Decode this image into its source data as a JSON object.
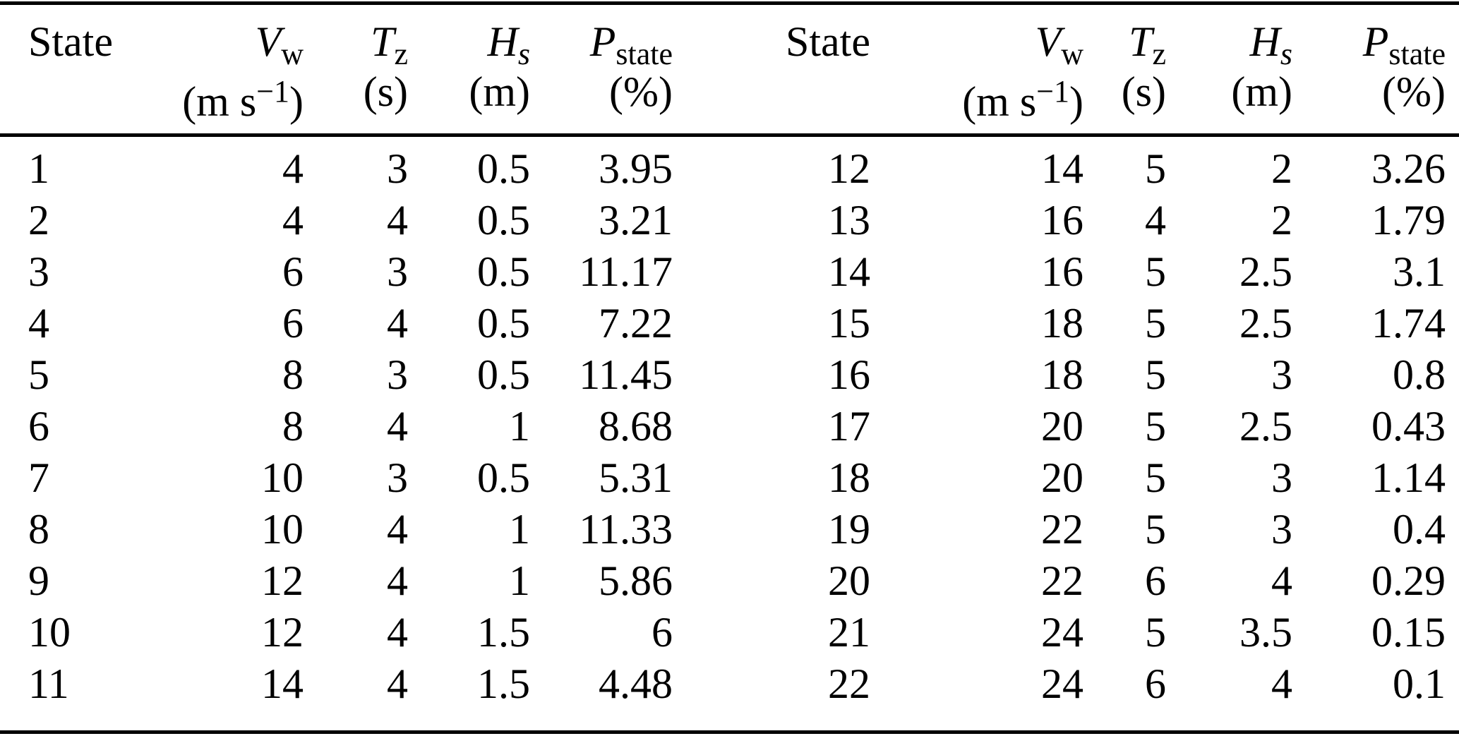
{
  "page": {
    "background": "#ffffff",
    "text_color": "#000000",
    "rule_color": "#000000"
  },
  "table": {
    "header": {
      "state": "State",
      "vw": {
        "symbol": "V",
        "subscript": "w",
        "unit_prefix": "(m s",
        "unit_superscript": "−1",
        "unit_suffix": ")"
      },
      "tz": {
        "symbol": "T",
        "subscript": "z",
        "unit": "(s)"
      },
      "hs": {
        "symbol": "H",
        "subscript": "s",
        "unit": "(m)"
      },
      "pstate": {
        "symbol": "P",
        "subscript": "state",
        "unit": "(%)"
      }
    },
    "column_keys": [
      "state",
      "vw",
      "tz",
      "hs",
      "pstate"
    ],
    "rows_left": [
      [
        "1",
        "4",
        "3",
        "0.5",
        "3.95"
      ],
      [
        "2",
        "4",
        "4",
        "0.5",
        "3.21"
      ],
      [
        "3",
        "6",
        "3",
        "0.5",
        "11.17"
      ],
      [
        "4",
        "6",
        "4",
        "0.5",
        "7.22"
      ],
      [
        "5",
        "8",
        "3",
        "0.5",
        "11.45"
      ],
      [
        "6",
        "8",
        "4",
        "1",
        "8.68"
      ],
      [
        "7",
        "10",
        "3",
        "0.5",
        "5.31"
      ],
      [
        "8",
        "10",
        "4",
        "1",
        "11.33"
      ],
      [
        "9",
        "12",
        "4",
        "1",
        "5.86"
      ],
      [
        "10",
        "12",
        "4",
        "1.5",
        "6"
      ],
      [
        "11",
        "14",
        "4",
        "1.5",
        "4.48"
      ]
    ],
    "rows_right": [
      [
        "12",
        "14",
        "5",
        "2",
        "3.26"
      ],
      [
        "13",
        "16",
        "4",
        "2",
        "1.79"
      ],
      [
        "14",
        "16",
        "5",
        "2.5",
        "3.1"
      ],
      [
        "15",
        "18",
        "5",
        "2.5",
        "1.74"
      ],
      [
        "16",
        "18",
        "5",
        "3",
        "0.8"
      ],
      [
        "17",
        "20",
        "5",
        "2.5",
        "0.43"
      ],
      [
        "18",
        "20",
        "5",
        "3",
        "1.14"
      ],
      [
        "19",
        "22",
        "5",
        "3",
        "0.4"
      ],
      [
        "20",
        "22",
        "6",
        "4",
        "0.29"
      ],
      [
        "21",
        "24",
        "5",
        "3.5",
        "0.15"
      ],
      [
        "22",
        "24",
        "6",
        "4",
        "0.1"
      ]
    ]
  }
}
